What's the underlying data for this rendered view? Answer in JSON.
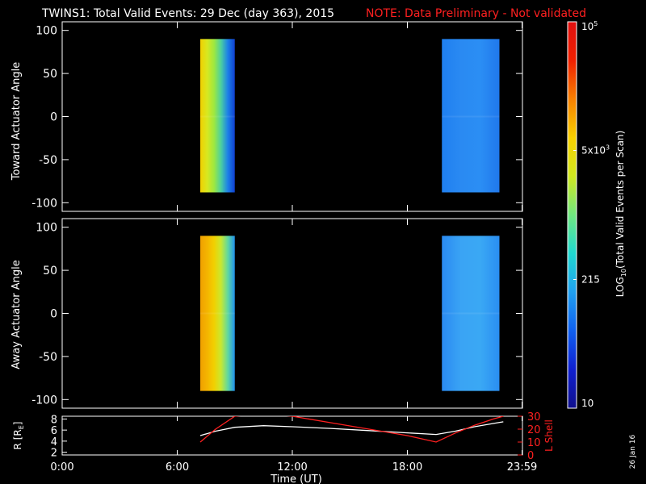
{
  "title": "TWINS1: Total Valid Events: 29 Dec (day 363), 2015",
  "note": "NOTE: Data Preliminary - Not validated",
  "colors": {
    "note": "#ff2020",
    "frame": "#ffffff",
    "background": "#000000",
    "lshell": "#ff2020",
    "radius": "#ffffff"
  },
  "date_stamp": "26 Jan 16",
  "chart_data": [
    {
      "id": "toward",
      "type": "heatmap",
      "ylabel": "Toward Actuator Angle",
      "ylim": [
        -110,
        110
      ],
      "yticks": [
        100,
        50,
        0,
        -50,
        -100
      ],
      "blocks": [
        {
          "x_start_h": 7.2,
          "x_end_h": 9.0,
          "y_range": [
            -88,
            90
          ],
          "gradient": [
            "#f2d000",
            "#d8e820",
            "#9ee840",
            "#4cd0a0",
            "#1c80e8",
            "#1040d0"
          ]
        },
        {
          "x_start_h": 19.8,
          "x_end_h": 22.8,
          "y_range": [
            -88,
            90
          ],
          "gradient": [
            "#1f7ff0",
            "#2a8af2",
            "#2b8ef4",
            "#2078ec"
          ]
        }
      ]
    },
    {
      "id": "away",
      "type": "heatmap",
      "ylabel": "Away Actuator Angle",
      "ylim": [
        -110,
        110
      ],
      "yticks": [
        100,
        50,
        0,
        -50,
        -100
      ],
      "blocks": [
        {
          "x_start_h": 7.2,
          "x_end_h": 9.0,
          "y_range": [
            -90,
            90
          ],
          "gradient": [
            "#f0a000",
            "#f4b400",
            "#f2d000",
            "#c8e830",
            "#60d8a0",
            "#2090ec"
          ]
        },
        {
          "x_start_h": 19.8,
          "x_end_h": 22.8,
          "y_range": [
            -90,
            90
          ],
          "gradient": [
            "#2a8af2",
            "#3aa4f4",
            "#3aa8f4",
            "#2a8ef2"
          ]
        }
      ]
    },
    {
      "id": "orbit",
      "type": "line",
      "ylabel": "R [R",
      "ylabel_sub": "E",
      "ylabel_end": "]",
      "y2label": "L Shell",
      "ylim": [
        1.5,
        8.5
      ],
      "yticks": [
        8,
        6,
        4,
        2
      ],
      "y2lim": [
        0,
        30
      ],
      "y2ticks": [
        30,
        20,
        10,
        0
      ],
      "x_ticks": [
        "0:00",
        "6:00",
        "12:00",
        "18:00",
        "23:59"
      ],
      "x_tick_hours": [
        0,
        6,
        12,
        18,
        23.98
      ],
      "xlabel": "Time (UT)",
      "series": [
        {
          "axis": "left",
          "x": [
            7.2,
            8.0,
            9.0,
            10.5,
            12.0,
            14.0,
            16.0,
            18.0,
            19.5,
            20.5,
            21.5,
            22.5,
            23.0
          ],
          "y": [
            5.0,
            5.8,
            6.5,
            6.8,
            6.6,
            6.3,
            5.9,
            5.5,
            5.2,
            5.8,
            6.6,
            7.2,
            7.5
          ]
        },
        {
          "axis": "right",
          "x": [
            7.2,
            8.0,
            9.0,
            10.5,
            12.0,
            14.0,
            16.0,
            18.0,
            19.5,
            20.5,
            21.5,
            22.5,
            23.0
          ],
          "y": [
            10.0,
            20.0,
            30.0,
            32.0,
            30.0,
            25.0,
            20.0,
            15.0,
            10.0,
            17.0,
            23.0,
            28.0,
            30.0
          ]
        }
      ]
    }
  ],
  "colorbar": {
    "label": "LOG",
    "label_sub": "10",
    "label_end": "(Total Valid Events per Scan)",
    "ticks": [
      {
        "text": "10",
        "frac": 0.0
      },
      {
        "text": "215",
        "frac": 0.333
      },
      {
        "text": "5x10",
        "sup": "3",
        "frac": 0.667
      },
      {
        "text": "10",
        "sup": "5",
        "frac": 1.0
      }
    ],
    "stops": [
      "#10108c",
      "#1020d0",
      "#1060f0",
      "#20a0f0",
      "#20d8d0",
      "#70e880",
      "#d0e820",
      "#f8d000",
      "#f88000",
      "#f02000",
      "#e01010"
    ]
  }
}
